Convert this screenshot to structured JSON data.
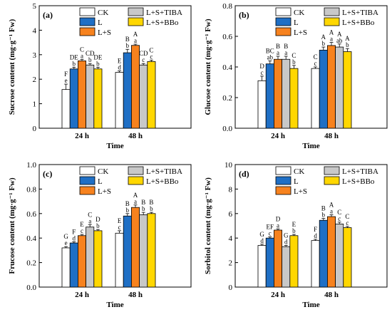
{
  "legend_labels": [
    "CK",
    "L",
    "L+S",
    "L+S+TIBA",
    "L+S+BBo"
  ],
  "series_colors": [
    "#ffffff",
    "#1f6fc5",
    "#f7821e",
    "#c8c8c8",
    "#ffd700"
  ],
  "chart_data": [
    {
      "type": "bar",
      "panel_label": "(a)",
      "ylabel": "Sucrose content (mg·g⁻¹ Fw)",
      "xlabel": "Time",
      "categories": [
        "24 h",
        "48 h"
      ],
      "ylim": [
        0,
        5
      ],
      "yticks": [
        "0",
        "1",
        "2",
        "3",
        "4",
        "5"
      ],
      "series": [
        {
          "name": "CK",
          "values": [
            1.58,
            2.28
          ],
          "errors": [
            0.22,
            0.06
          ],
          "upper": [
            "F",
            "E"
          ],
          "lower": [
            "e",
            "d"
          ]
        },
        {
          "name": "L",
          "values": [
            2.42,
            3.08
          ],
          "errors": [
            0.07,
            0.14
          ],
          "upper": [
            "DE",
            "B"
          ],
          "lower": [
            "b",
            "b"
          ]
        },
        {
          "name": "L+S",
          "values": [
            2.75,
            3.38
          ],
          "errors": [
            0.06,
            0.05
          ],
          "upper": [
            "C",
            "A"
          ],
          "lower": [
            "a",
            "a"
          ]
        },
        {
          "name": "L+S+TIBA",
          "values": [
            2.58,
            2.58
          ],
          "errors": [
            0.06,
            0.06
          ],
          "upper": [
            "CD",
            "CD"
          ],
          "lower": [
            "b",
            "c"
          ]
        },
        {
          "name": "L+S+BBo",
          "values": [
            2.42,
            2.72
          ],
          "errors": [
            0.07,
            0.06
          ],
          "upper": [
            "DE",
            "C"
          ],
          "lower": [
            "b",
            "c"
          ]
        }
      ]
    },
    {
      "type": "bar",
      "panel_label": "(b)",
      "ylabel": "Glucose content (mg·g⁻¹ Fw)",
      "xlabel": "Time",
      "categories": [
        "24 h",
        "48 h"
      ],
      "ylim": [
        0,
        0.8
      ],
      "yticks": [
        "0.0",
        "0.2",
        "0.4",
        "0.6",
        "0.8"
      ],
      "series": [
        {
          "name": "CK",
          "values": [
            0.31,
            0.39
          ],
          "errors": [
            0.03,
            0.01
          ],
          "upper": [
            "D",
            "C"
          ],
          "lower": [
            "c",
            "c"
          ]
        },
        {
          "name": "L",
          "values": [
            0.42,
            0.51
          ],
          "errors": [
            0.02,
            0.02
          ],
          "upper": [
            "BC",
            "A"
          ],
          "lower": [
            "ab",
            "b"
          ]
        },
        {
          "name": "L+S",
          "values": [
            0.45,
            0.54
          ],
          "errors": [
            0.02,
            0.02
          ],
          "upper": [
            "B",
            "A"
          ],
          "lower": [
            "a",
            "a"
          ]
        },
        {
          "name": "L+S+TIBA",
          "values": [
            0.45,
            0.53
          ],
          "errors": [
            0.02,
            0.02
          ],
          "upper": [
            "B",
            "A"
          ],
          "lower": [
            "a",
            "ab"
          ]
        },
        {
          "name": "L+S+BBo",
          "values": [
            0.39,
            0.5
          ],
          "errors": [
            0.02,
            0.02
          ],
          "upper": [
            "C",
            "A"
          ],
          "lower": [
            "b",
            "b"
          ]
        }
      ]
    },
    {
      "type": "bar",
      "panel_label": "(c)",
      "ylabel": "Frucose content (mg·g⁻¹ Fw)",
      "xlabel": "Time",
      "categories": [
        "24 h",
        "48 h"
      ],
      "ylim": [
        0,
        1.0
      ],
      "yticks": [
        "0.0",
        "0.2",
        "0.4",
        "0.6",
        "0.8",
        "1.0"
      ],
      "series": [
        {
          "name": "CK",
          "values": [
            0.32,
            0.44
          ],
          "errors": [
            0.01,
            0.02
          ],
          "upper": [
            "G",
            "E"
          ],
          "lower": [
            "e",
            "c"
          ]
        },
        {
          "name": "L",
          "values": [
            0.36,
            0.58
          ],
          "errors": [
            0.01,
            0.02
          ],
          "upper": [
            "F",
            "B"
          ],
          "lower": [
            "d",
            "b"
          ]
        },
        {
          "name": "L+S",
          "values": [
            0.42,
            0.65
          ],
          "errors": [
            0.01,
            0.02
          ],
          "upper": [
            "E",
            "A"
          ],
          "lower": [
            "c",
            "a"
          ]
        },
        {
          "name": "L+S+TIBA",
          "values": [
            0.49,
            0.59
          ],
          "errors": [
            0.02,
            0.02
          ],
          "upper": [
            "C",
            "B"
          ],
          "lower": [
            "a",
            "b"
          ]
        },
        {
          "name": "L+S+BBo",
          "values": [
            0.46,
            0.6
          ],
          "errors": [
            0.01,
            0.01
          ],
          "upper": [
            "D",
            "B"
          ],
          "lower": [
            "b",
            "b"
          ]
        }
      ]
    },
    {
      "type": "bar",
      "panel_label": "(d)",
      "ylabel": "Sorbitol content (mg·g⁻¹ Fw)",
      "xlabel": "Time",
      "categories": [
        "24 h",
        "48 h"
      ],
      "ylim": [
        0,
        10
      ],
      "yticks": [
        "0",
        "2",
        "4",
        "6",
        "8",
        "10"
      ],
      "series": [
        {
          "name": "CK",
          "values": [
            3.4,
            3.8
          ],
          "errors": [
            0.1,
            0.1
          ],
          "upper": [
            "G",
            "F"
          ],
          "lower": [
            "d",
            "d"
          ]
        },
        {
          "name": "L",
          "values": [
            4.0,
            5.45
          ],
          "errors": [
            0.1,
            0.15
          ],
          "upper": [
            "EF",
            "B"
          ],
          "lower": [
            "c",
            "b"
          ]
        },
        {
          "name": "L+S",
          "values": [
            4.65,
            5.75
          ],
          "errors": [
            0.1,
            0.15
          ],
          "upper": [
            "D",
            "A"
          ],
          "lower": [
            "a",
            "a"
          ]
        },
        {
          "name": "L+S+TIBA",
          "values": [
            3.3,
            5.15
          ],
          "errors": [
            0.1,
            0.15
          ],
          "upper": [
            "G",
            "C"
          ],
          "lower": [
            "d",
            "c"
          ]
        },
        {
          "name": "L+S+BBo",
          "values": [
            4.2,
            4.85
          ],
          "errors": [
            0.1,
            0.1
          ],
          "upper": [
            "E",
            "C"
          ],
          "lower": [
            "b",
            "c"
          ]
        }
      ]
    }
  ]
}
